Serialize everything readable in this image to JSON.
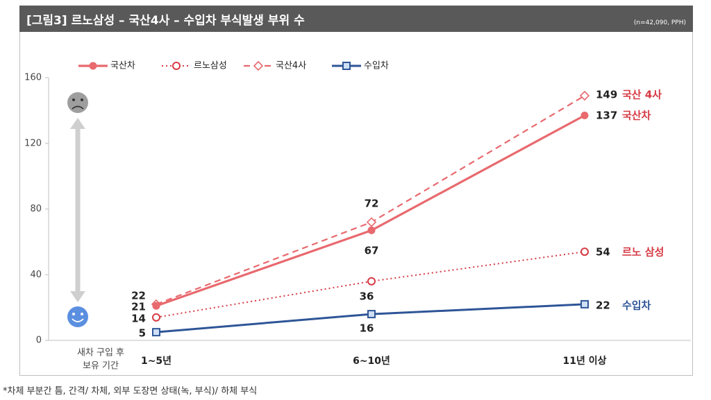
{
  "header": {
    "title": "[그림3] 르노삼성 – 국산4사 – 수입차 부식발생 부위 수",
    "note": "(n=42,090, PPH)"
  },
  "footnote": "*차체 부분간 틈, 간격/ 차체, 외부 도장면 상태(녹, 부식)/ 하체 부식",
  "colors": {
    "domestic": "#e8696e",
    "renault": "#d63a44",
    "imported": "#2e5597",
    "arrow": "#cfcfcf",
    "face": "#9e9e9e",
    "smile": "#5b8fe0"
  },
  "icons": {
    "top": "sad-face-icon",
    "bottom": "smile-face-icon",
    "arrow": "double-arrow-icon"
  },
  "chart_data": {
    "type": "line",
    "categories": [
      "1~5년",
      "6~10년",
      "11년 이상"
    ],
    "xlabel": "새차 구입 후\n보유 기간",
    "ylabel": "",
    "ylim": [
      0,
      160
    ],
    "yticks": [
      "0",
      "40",
      "80",
      "120",
      "160"
    ],
    "grid": false,
    "legend_position": "top-left",
    "series": [
      {
        "name": "국산차",
        "values": [
          21,
          67,
          137
        ],
        "end_label": "국산차",
        "style": "solid",
        "marker": "filled-circle"
      },
      {
        "name": "르노삼성",
        "values": [
          14,
          36,
          54
        ],
        "end_label": "르노 삼성",
        "style": "dotted",
        "marker": "open-circle"
      },
      {
        "name": "국산4사",
        "values": [
          22,
          72,
          149
        ],
        "end_label": "국산 4사",
        "style": "dashed",
        "marker": "open-diamond"
      },
      {
        "name": "수입차",
        "values": [
          5,
          16,
          22
        ],
        "end_label": "수입차",
        "style": "solid",
        "marker": "square"
      }
    ]
  }
}
